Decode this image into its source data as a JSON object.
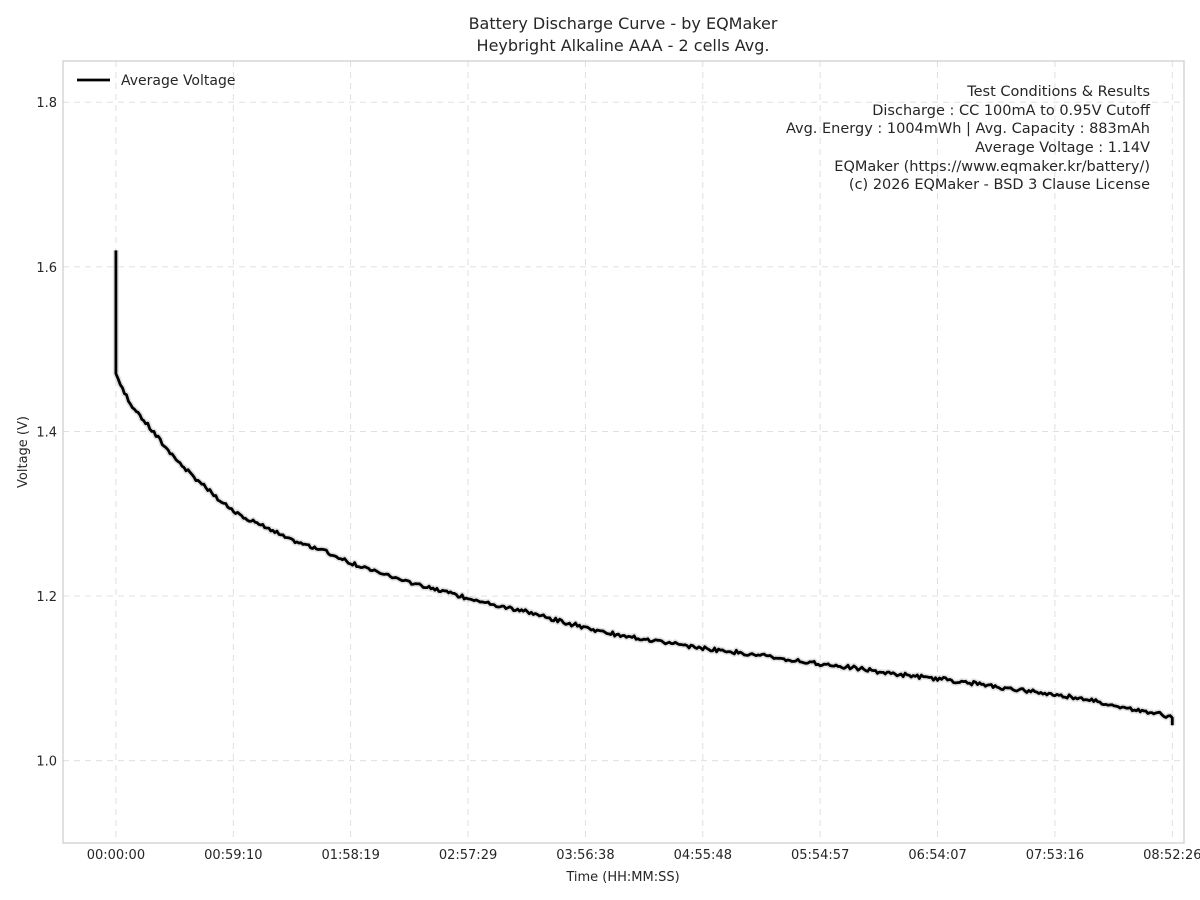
{
  "chart_data": {
    "type": "line",
    "title": "Battery Discharge Curve - by EQMaker",
    "subtitle": "Heybright Alkaline AAA - 2 cells Avg.",
    "xlabel": "Time (HH:MM:SS)",
    "ylabel": "Voltage (V)",
    "x_unit": "seconds",
    "xlim": [
      -1600,
      32300
    ],
    "ylim": [
      0.9,
      1.85
    ],
    "x_ticks": [
      {
        "value": 0,
        "label": "00:00:00"
      },
      {
        "value": 3550,
        "label": "00:59:10"
      },
      {
        "value": 7099,
        "label": "01:58:19"
      },
      {
        "value": 10649,
        "label": "02:57:29"
      },
      {
        "value": 14198,
        "label": "03:56:38"
      },
      {
        "value": 17748,
        "label": "04:55:48"
      },
      {
        "value": 21297,
        "label": "05:54:57"
      },
      {
        "value": 24847,
        "label": "06:54:07"
      },
      {
        "value": 28396,
        "label": "07:53:16"
      },
      {
        "value": 31946,
        "label": "08:52:26"
      }
    ],
    "y_ticks": [
      {
        "value": 1.0,
        "label": "1.0"
      },
      {
        "value": 1.2,
        "label": "1.2"
      },
      {
        "value": 1.4,
        "label": "1.4"
      },
      {
        "value": 1.6,
        "label": "1.6"
      },
      {
        "value": 1.8,
        "label": "1.8"
      }
    ],
    "grid": true,
    "legend": {
      "position": "top-left",
      "entries": [
        "Average Voltage"
      ]
    },
    "series": [
      {
        "name": "Average Voltage",
        "color": "#000000",
        "points": [
          [
            0,
            1.62
          ],
          [
            0,
            1.47
          ],
          [
            200,
            1.45
          ],
          [
            500,
            1.43
          ],
          [
            900,
            1.41
          ],
          [
            1400,
            1.385
          ],
          [
            2000,
            1.358
          ],
          [
            2600,
            1.335
          ],
          [
            3200,
            1.313
          ],
          [
            3800,
            1.297
          ],
          [
            4500,
            1.283
          ],
          [
            5300,
            1.268
          ],
          [
            6300,
            1.254
          ],
          [
            7099,
            1.24
          ],
          [
            8000,
            1.227
          ],
          [
            9000,
            1.215
          ],
          [
            10000,
            1.205
          ],
          [
            10649,
            1.196
          ],
          [
            11500,
            1.188
          ],
          [
            12500,
            1.18
          ],
          [
            13300,
            1.17
          ],
          [
            14198,
            1.161
          ],
          [
            15200,
            1.152
          ],
          [
            16500,
            1.144
          ],
          [
            17748,
            1.136
          ],
          [
            19000,
            1.13
          ],
          [
            20200,
            1.123
          ],
          [
            21297,
            1.117
          ],
          [
            22500,
            1.111
          ],
          [
            23500,
            1.105
          ],
          [
            24847,
            1.099
          ],
          [
            26000,
            1.093
          ],
          [
            27000,
            1.087
          ],
          [
            28396,
            1.08
          ],
          [
            29200,
            1.075
          ],
          [
            30000,
            1.068
          ],
          [
            30800,
            1.062
          ],
          [
            31500,
            1.057
          ],
          [
            31946,
            1.052
          ],
          [
            31946,
            1.043
          ]
        ]
      }
    ],
    "annotations": [
      "Test Conditions & Results",
      "Discharge : CC 100mA to 0.95V Cutoff",
      "Avg. Energy : 1004mWh | Avg. Capacity : 883mAh",
      "Average Voltage : 1.14V",
      "EQMaker (https://www.eqmaker.kr/battery/)",
      "(c) 2026 EQMaker - BSD 3 Clause License"
    ]
  }
}
